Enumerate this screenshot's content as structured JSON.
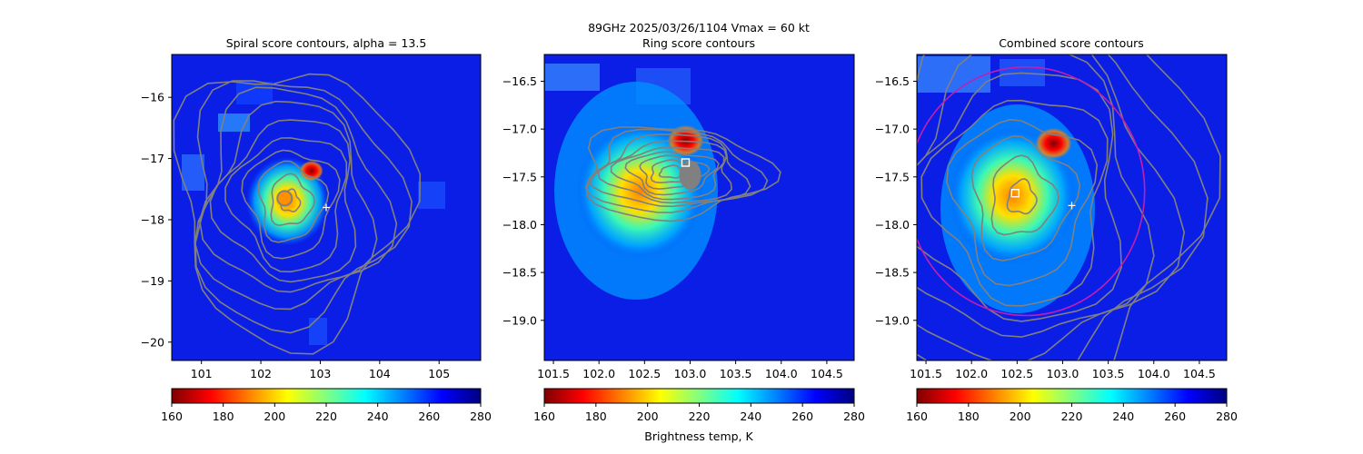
{
  "figure": {
    "suptitle_line1": "89GHz  2025/03/26/1104    Vmax = 60 kt",
    "colorbar_label": "Brightness temp, K"
  },
  "colormap": {
    "name": "jet_r",
    "stops": [
      "#800000",
      "#ff0000",
      "#ff8000",
      "#ffff00",
      "#80ff80",
      "#00ffff",
      "#0080ff",
      "#0000ff",
      "#000080"
    ]
  },
  "colors": {
    "contour": "#808080",
    "circle": "#c21fb0",
    "marker": "#ffffff"
  },
  "chart_data": [
    {
      "type": "heatmap",
      "title": "Spiral score contours, alpha = 13.5",
      "xlabel": "",
      "ylabel": "",
      "xlim": [
        100.5,
        105.7
      ],
      "ylim": [
        -20.3,
        -15.3
      ],
      "xticks": [
        "101",
        "102",
        "103",
        "104",
        "105"
      ],
      "yticks": [
        "−16",
        "−17",
        "−18",
        "−19",
        "−20"
      ],
      "xtick_values": [
        101,
        102,
        103,
        104,
        105
      ],
      "ytick_values": [
        -16,
        -17,
        -18,
        -19,
        -20
      ],
      "colorbar_range": [
        160,
        280
      ],
      "colorbar_ticks": [
        "160",
        "180",
        "200",
        "220",
        "240",
        "260",
        "280"
      ],
      "colorbar_values": [
        160,
        180,
        200,
        220,
        240,
        260,
        280
      ],
      "cold_core_center": [
        102.45,
        -17.7
      ],
      "coldest_spot": [
        102.85,
        -17.2
      ],
      "markers": [
        {
          "kind": "circle",
          "x": 102.4,
          "y": -17.65
        },
        {
          "kind": "plus",
          "x": 103.1,
          "y": -17.8
        }
      ],
      "contour_center": [
        102.5,
        -17.7
      ]
    },
    {
      "type": "heatmap",
      "title": "Ring score contours",
      "xlabel": "",
      "ylabel": "",
      "xlim": [
        101.4,
        104.8
      ],
      "ylim": [
        -19.42,
        -16.22
      ],
      "xticks": [
        "101.5",
        "102.0",
        "102.5",
        "103.0",
        "103.5",
        "104.0",
        "104.5"
      ],
      "yticks": [
        "−16.5",
        "−17.0",
        "−17.5",
        "−18.0",
        "−18.5",
        "−19.0"
      ],
      "xtick_values": [
        101.5,
        102.0,
        102.5,
        103.0,
        103.5,
        104.0,
        104.5
      ],
      "ytick_values": [
        -16.5,
        -17.0,
        -17.5,
        -18.0,
        -18.5,
        -19.0
      ],
      "colorbar_range": [
        160,
        280
      ],
      "colorbar_ticks": [
        "160",
        "180",
        "200",
        "220",
        "240",
        "260",
        "280"
      ],
      "colorbar_values": [
        160,
        180,
        200,
        220,
        240,
        260,
        280
      ],
      "cold_core_center": [
        102.45,
        -17.65
      ],
      "coldest_spot": [
        102.95,
        -17.12
      ],
      "markers": [
        {
          "kind": "square",
          "x": 102.95,
          "y": -17.35
        }
      ],
      "contour_center": [
        102.8,
        -17.45
      ]
    },
    {
      "type": "heatmap",
      "title": "Combined score contours",
      "xlabel": "",
      "ylabel": "",
      "xlim": [
        101.4,
        104.8
      ],
      "ylim": [
        -19.42,
        -16.22
      ],
      "xticks": [
        "101.5",
        "102.0",
        "102.5",
        "103.0",
        "103.5",
        "104.0",
        "104.5"
      ],
      "yticks": [
        "−16.5",
        "−17.0",
        "−17.5",
        "−18.0",
        "−18.5",
        "−19.0"
      ],
      "xtick_values": [
        101.5,
        102.0,
        102.5,
        103.0,
        103.5,
        104.0,
        104.5
      ],
      "ytick_values": [
        -16.5,
        -17.0,
        -17.5,
        -18.0,
        -18.5,
        -19.0
      ],
      "colorbar_range": [
        160,
        280
      ],
      "colorbar_ticks": [
        "160",
        "180",
        "200",
        "220",
        "240",
        "260",
        "280"
      ],
      "colorbar_values": [
        160,
        180,
        200,
        220,
        240,
        260,
        280
      ],
      "cold_core_center": [
        102.45,
        -17.7
      ],
      "coldest_spot": [
        102.9,
        -17.15
      ],
      "markers": [
        {
          "kind": "square",
          "x": 102.48,
          "y": -17.67
        },
        {
          "kind": "plus",
          "x": 103.1,
          "y": -17.8
        }
      ],
      "contour_center": [
        102.55,
        -17.72
      ],
      "circle": {
        "center_x": 102.6,
        "center_y": -17.65,
        "radius_deg": 1.3
      }
    }
  ]
}
